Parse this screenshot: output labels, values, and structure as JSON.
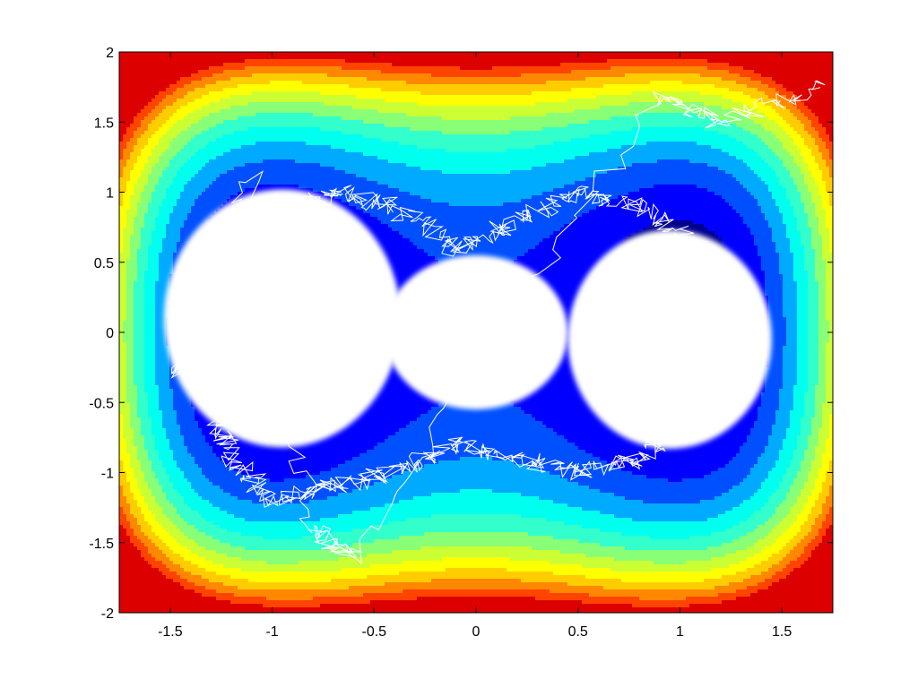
{
  "chart_data": {
    "type": "contour",
    "title": "",
    "xlabel": "",
    "ylabel": "",
    "xlim": [
      -1.75,
      1.75
    ],
    "ylim": [
      -2,
      2
    ],
    "x_ticks": [
      -1.5,
      -1,
      -0.5,
      0,
      0.5,
      1,
      1.5
    ],
    "x_tick_labels": [
      "-1.5",
      "-1",
      "-0.5",
      "0",
      "0.5",
      "1",
      "1.5"
    ],
    "y_ticks": [
      2,
      1.5,
      1,
      0.5,
      0,
      -0.5,
      -1,
      -1.5,
      -2
    ],
    "y_tick_labels": [
      "2",
      "1.5",
      "1",
      "0.5",
      "0",
      "-0.5",
      "-1",
      "-1.5",
      "-2"
    ],
    "grid": false,
    "legend": "none",
    "colormap": "jet",
    "band_colors": [
      "#00008f",
      "#0000ff",
      "#0050ff",
      "#00aaff",
      "#00ffee",
      "#33ffcc",
      "#88ff77",
      "#ccff33",
      "#ffff00",
      "#ffcc00",
      "#ff8800",
      "#ff4400",
      "#dd0000"
    ],
    "contour_line_color": "#000000",
    "trajectory_color": "#ffffff",
    "series": [
      {
        "type": "filled-contour",
        "description_of_field": "double-well potential with minima near (-1, 0.2) and (1, 0.2)",
        "levels": [
          0.0,
          0.5,
          1.0,
          1.5,
          2.0,
          2.5,
          3.0,
          3.5,
          4.0,
          4.5,
          5.0,
          5.5,
          6.0
        ]
      },
      {
        "type": "trajectory",
        "points": [
          [
            -1.2,
            0.5
          ],
          [
            -1.0,
            0.8
          ],
          [
            -0.7,
            1.0
          ],
          [
            -0.4,
            0.9
          ],
          [
            -0.1,
            0.6
          ],
          [
            0.2,
            0.8
          ],
          [
            0.5,
            1.0
          ],
          [
            0.8,
            0.9
          ],
          [
            1.1,
            0.6
          ],
          [
            1.2,
            0.2
          ],
          [
            1.1,
            -0.2
          ],
          [
            1.0,
            -0.6
          ],
          [
            0.8,
            -0.9
          ],
          [
            0.5,
            -1.0
          ],
          [
            0.2,
            -0.9
          ],
          [
            -0.1,
            -0.8
          ],
          [
            -0.4,
            -1.0
          ],
          [
            -0.7,
            -1.1
          ],
          [
            -1.0,
            -1.2
          ],
          [
            -1.2,
            -0.9
          ],
          [
            -1.3,
            -0.5
          ],
          [
            -1.4,
            -0.1
          ],
          [
            -1.3,
            0.3
          ],
          [
            -1.5,
            -0.3
          ],
          [
            -1.1,
            1.1
          ],
          [
            -0.8,
            -1.4
          ],
          [
            -0.6,
            -1.6
          ],
          [
            0.9,
            1.7
          ],
          [
            1.2,
            1.5
          ],
          [
            1.7,
            1.75
          ]
        ]
      }
    ]
  }
}
